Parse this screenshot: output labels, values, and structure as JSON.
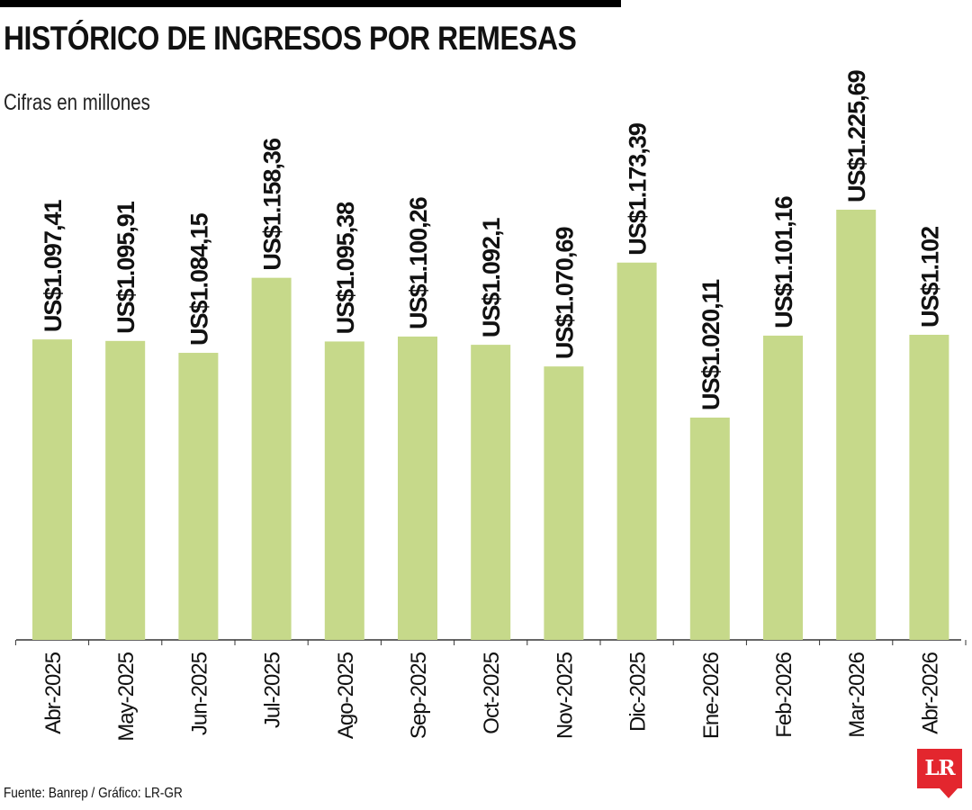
{
  "title": "HISTÓRICO DE INGRESOS POR REMESAS",
  "subtitle": "Cifras en millones",
  "source": "Fuente: Banrep / Gráfico: LR-GR",
  "logo_text": "LR",
  "colors": {
    "bar": "#c6d98a",
    "axis": "#333333",
    "text": "#111111",
    "logo": "#e3262e"
  },
  "chart_data": {
    "type": "bar",
    "categories": [
      "Abr-2025",
      "May-2025",
      "Jun-2025",
      "Jul-2025",
      "Ago-2025",
      "Sep-2025",
      "Oct-2025",
      "Nov-2025",
      "Dic-2025",
      "Ene-2026",
      "Feb-2026",
      "Mar-2026",
      "Abr-2026"
    ],
    "values": [
      1097.41,
      1095.91,
      1084.15,
      1158.36,
      1095.38,
      1100.26,
      1092.1,
      1070.69,
      1173.39,
      1020.11,
      1101.16,
      1225.69,
      1102
    ],
    "data_labels": [
      "US$1.097,41",
      "US$1.095,91",
      "US$1.084,15",
      "US$1.158,36",
      "US$1.095,38",
      "US$1.100,26",
      "US$1.092,1",
      "US$1.070,69",
      "US$1.173,39",
      "US$1.020,11",
      "US$1.101,16",
      "US$1.225,69",
      "US$1.102"
    ],
    "grid": false,
    "legend": "none"
  }
}
